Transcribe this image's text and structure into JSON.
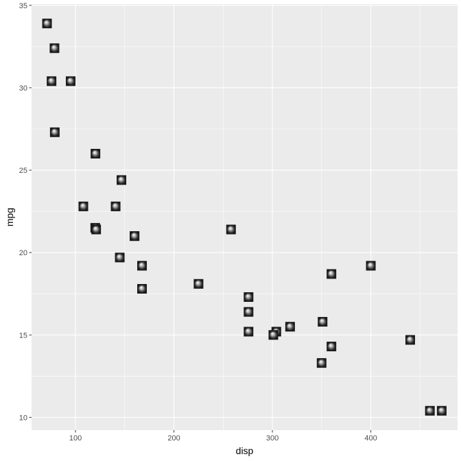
{
  "chart_data": {
    "type": "scatter",
    "title": "",
    "xlabel": "disp",
    "ylabel": "mpg",
    "xlim": [
      55.4,
      488.1
    ],
    "ylim": [
      9.225,
      35.075
    ],
    "x_ticks": [
      100,
      200,
      300,
      400
    ],
    "y_ticks": [
      10,
      15,
      20,
      25,
      30,
      35
    ],
    "grid": true,
    "legend": "none",
    "colors": {
      "panel_background": "#ebebeb",
      "grid_major": "#ffffff",
      "marker_fill": "#1a1a1a",
      "marker_highlight": "#ffffff"
    },
    "marker_icon": "sphere-square-icon",
    "points": [
      {
        "x": 160,
        "y": 21.0
      },
      {
        "x": 160,
        "y": 21.0
      },
      {
        "x": 108,
        "y": 22.8
      },
      {
        "x": 258,
        "y": 21.4
      },
      {
        "x": 360,
        "y": 18.7
      },
      {
        "x": 225,
        "y": 18.1
      },
      {
        "x": 360,
        "y": 14.3
      },
      {
        "x": 146.7,
        "y": 24.4
      },
      {
        "x": 140.8,
        "y": 22.8
      },
      {
        "x": 167.6,
        "y": 19.2
      },
      {
        "x": 167.6,
        "y": 17.8
      },
      {
        "x": 275.8,
        "y": 16.4
      },
      {
        "x": 275.8,
        "y": 17.3
      },
      {
        "x": 275.8,
        "y": 15.2
      },
      {
        "x": 472,
        "y": 10.4
      },
      {
        "x": 460,
        "y": 10.4
      },
      {
        "x": 440,
        "y": 14.7
      },
      {
        "x": 78.7,
        "y": 32.4
      },
      {
        "x": 75.7,
        "y": 30.4
      },
      {
        "x": 71.1,
        "y": 33.9
      },
      {
        "x": 120.1,
        "y": 21.5
      },
      {
        "x": 318,
        "y": 15.5
      },
      {
        "x": 304,
        "y": 15.2
      },
      {
        "x": 350,
        "y": 13.3
      },
      {
        "x": 400,
        "y": 19.2
      },
      {
        "x": 79,
        "y": 27.3
      },
      {
        "x": 120.3,
        "y": 26.0
      },
      {
        "x": 95.1,
        "y": 30.4
      },
      {
        "x": 351,
        "y": 15.8
      },
      {
        "x": 145,
        "y": 19.7
      },
      {
        "x": 301,
        "y": 15.0
      },
      {
        "x": 121,
        "y": 21.4
      }
    ]
  }
}
